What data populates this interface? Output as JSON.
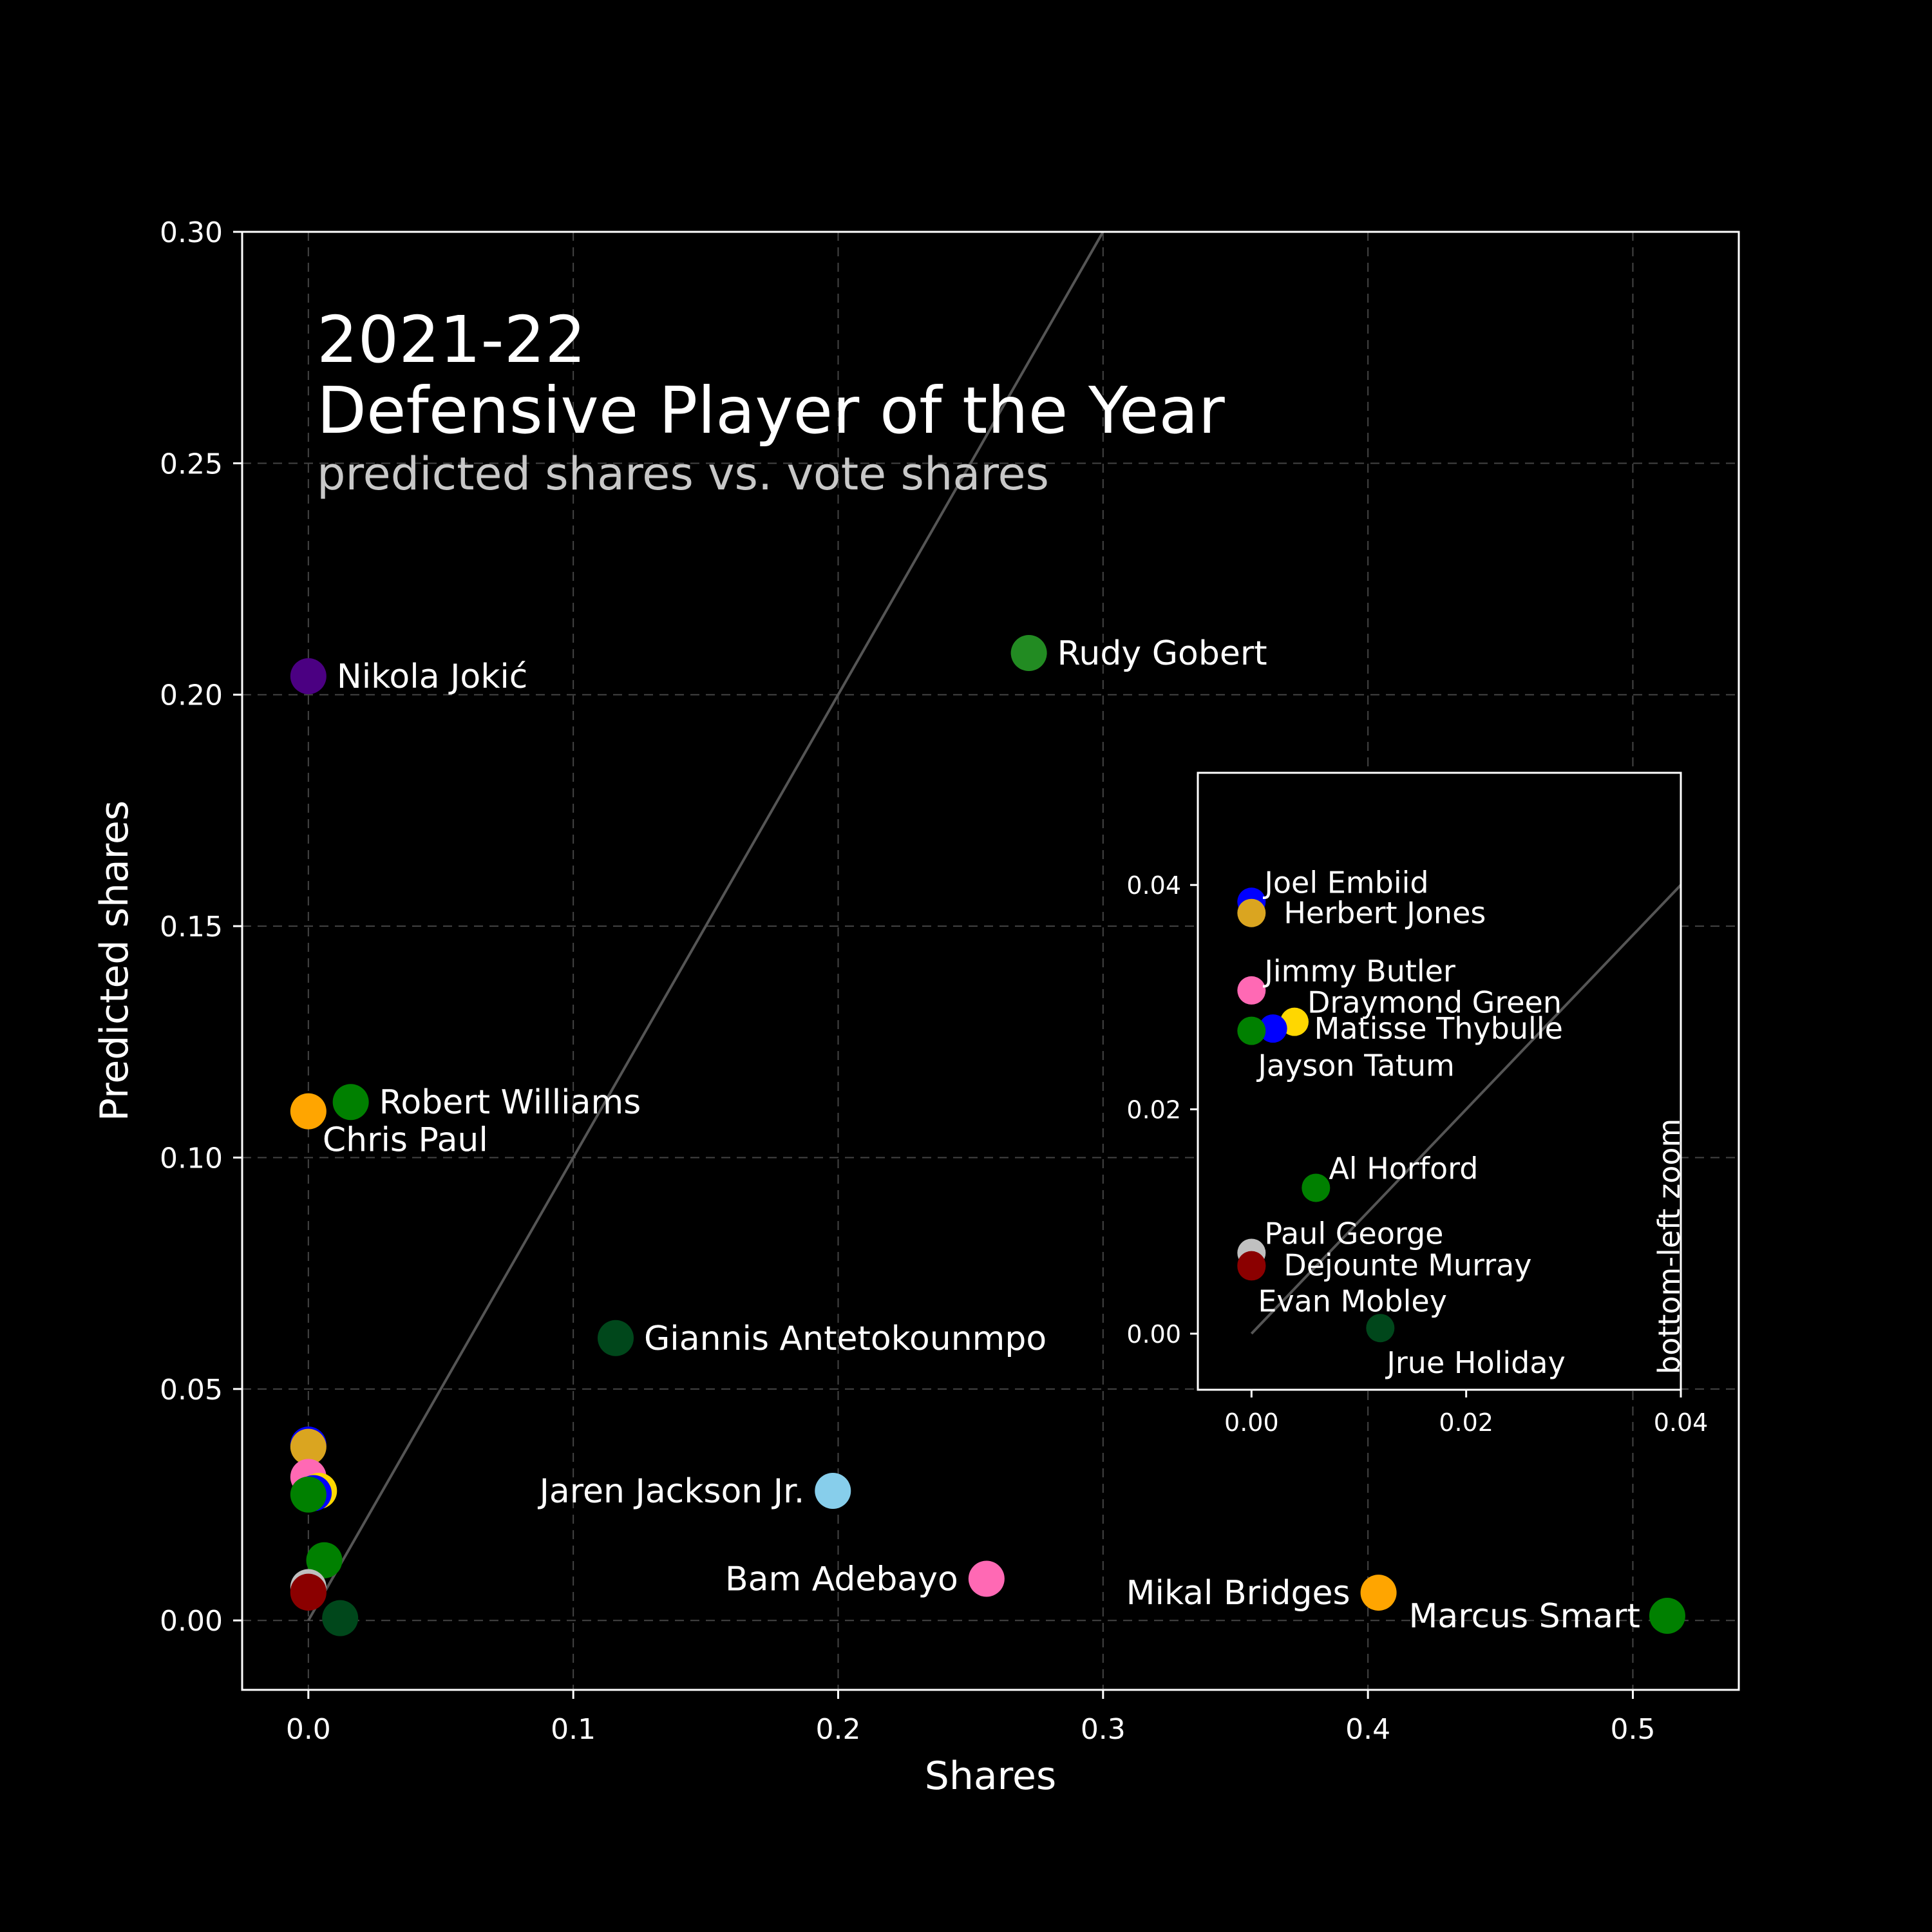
{
  "chart_data": {
    "type": "scatter",
    "title": "2021-22",
    "title_line2": "Defensive Player of the Year",
    "subtitle": "predicted shares vs. vote shares",
    "xlabel": "Shares",
    "ylabel": "Predicted shares",
    "xlim": [
      -0.025,
      0.54
    ],
    "ylim": [
      -0.015,
      0.3
    ],
    "xticks": [
      0.0,
      0.1,
      0.2,
      0.3,
      0.4,
      0.5
    ],
    "xtick_labels": [
      "0.0",
      "0.1",
      "0.2",
      "0.3",
      "0.4",
      "0.5"
    ],
    "yticks": [
      0.0,
      0.05,
      0.1,
      0.15,
      0.2,
      0.25,
      0.3
    ],
    "ytick_labels": [
      "0.00",
      "0.05",
      "0.10",
      "0.15",
      "0.20",
      "0.25",
      "0.30"
    ],
    "grid": true,
    "reference_line": "y = x",
    "points": [
      {
        "name": "Nikola Jokić",
        "x": 0.0,
        "y": 0.204,
        "color": "#4b0082",
        "label_side": "right",
        "labeled": true
      },
      {
        "name": "Rudy Gobert",
        "x": 0.272,
        "y": 0.209,
        "color": "#228b22",
        "label_side": "right",
        "labeled": true
      },
      {
        "name": "Robert Williams",
        "x": 0.016,
        "y": 0.112,
        "color": "#008000",
        "label_side": "right",
        "labeled": true
      },
      {
        "name": "Chris Paul",
        "x": 0.0,
        "y": 0.11,
        "color": "#ffa500",
        "label_side": "below-right",
        "labeled": true
      },
      {
        "name": "Giannis Antetokounmpo",
        "x": 0.116,
        "y": 0.061,
        "color": "#00471b",
        "label_side": "right",
        "labeled": true
      },
      {
        "name": "Jaren Jackson Jr.",
        "x": 0.198,
        "y": 0.028,
        "color": "#87ceeb",
        "label_side": "left",
        "labeled": true
      },
      {
        "name": "Bam Adebayo",
        "x": 0.256,
        "y": 0.009,
        "color": "#ff69b4",
        "label_side": "left",
        "labeled": true
      },
      {
        "name": "Mikal Bridges",
        "x": 0.404,
        "y": 0.006,
        "color": "#ffa500",
        "label_side": "left",
        "labeled": true
      },
      {
        "name": "Marcus Smart",
        "x": 0.513,
        "y": 0.001,
        "color": "#008000",
        "label_side": "left-below",
        "labeled": true
      },
      {
        "name": "Joel Embiid",
        "x": 0.0,
        "y": 0.038,
        "color": "#0000ff",
        "labeled": false
      },
      {
        "name": "Herbert Jones",
        "x": 0.0,
        "y": 0.0375,
        "color": "#daa520",
        "labeled": false
      },
      {
        "name": "Jimmy Butler",
        "x": 0.0,
        "y": 0.031,
        "color": "#ff69b4",
        "labeled": false
      },
      {
        "name": "Draymond Green",
        "x": 0.004,
        "y": 0.028,
        "color": "#ffd700",
        "labeled": false
      },
      {
        "name": "Matisse Thybulle",
        "x": 0.002,
        "y": 0.0275,
        "color": "#0000ff",
        "labeled": false
      },
      {
        "name": "Jayson Tatum",
        "x": 0.0,
        "y": 0.0272,
        "color": "#008000",
        "labeled": false
      },
      {
        "name": "Al Horford",
        "x": 0.006,
        "y": 0.013,
        "color": "#008000",
        "labeled": false
      },
      {
        "name": "Paul George",
        "x": 0.0,
        "y": 0.0072,
        "color": "#c0c0c0",
        "labeled": false
      },
      {
        "name": "Dejounte Murray",
        "x": 0.0,
        "y": 0.0062,
        "color": "#8b0000",
        "labeled": false
      },
      {
        "name": "Evan Mobley",
        "x": 0.0,
        "y": 0.006,
        "color": "#8b0000",
        "labeled": false
      },
      {
        "name": "Jrue Holiday",
        "x": 0.012,
        "y": 0.0005,
        "color": "#00471b",
        "labeled": false
      }
    ],
    "inset": {
      "label": "bottom-left zoom",
      "xlim": [
        -0.005,
        0.04
      ],
      "ylim": [
        -0.005,
        0.05
      ],
      "xticks": [
        0.0,
        0.02,
        0.04
      ],
      "xtick_labels": [
        "0.00",
        "0.02",
        "0.04"
      ],
      "yticks": [
        0.0,
        0.02,
        0.04
      ],
      "ytick_labels": [
        "0.00",
        "0.02",
        "0.04"
      ],
      "points": [
        {
          "name": "Joel Embiid",
          "x": 0.0,
          "y": 0.0385,
          "color": "#0000ff",
          "label_side": "above-right"
        },
        {
          "name": "Herbert Jones",
          "x": 0.0,
          "y": 0.0375,
          "color": "#daa520",
          "label_side": "right"
        },
        {
          "name": "Jimmy Butler",
          "x": 0.0,
          "y": 0.0306,
          "color": "#ff69b4",
          "label_side": "above-right"
        },
        {
          "name": "Draymond Green",
          "x": 0.004,
          "y": 0.0278,
          "color": "#ffd700",
          "label_side": "above-right"
        },
        {
          "name": "Matisse Thybulle",
          "x": 0.002,
          "y": 0.0272,
          "color": "#0000ff",
          "label_side": "right-far"
        },
        {
          "name": "Jayson Tatum",
          "x": 0.0,
          "y": 0.027,
          "color": "#008000",
          "label_side": "below-right"
        },
        {
          "name": "Al Horford",
          "x": 0.006,
          "y": 0.013,
          "color": "#008000",
          "label_side": "above-right"
        },
        {
          "name": "Paul George",
          "x": 0.0,
          "y": 0.0072,
          "color": "#c0c0c0",
          "label_side": "above-right"
        },
        {
          "name": "Dejounte Murray",
          "x": 0.0,
          "y": 0.0061,
          "color": "#8b0000",
          "label_side": "right"
        },
        {
          "name": "Evan Mobley",
          "x": 0.0,
          "y": 0.006,
          "color": "#8b0000",
          "label_side": "below-right"
        },
        {
          "name": "Jrue Holiday",
          "x": 0.012,
          "y": 0.0005,
          "color": "#00471b",
          "label_side": "below-right"
        }
      ]
    }
  }
}
